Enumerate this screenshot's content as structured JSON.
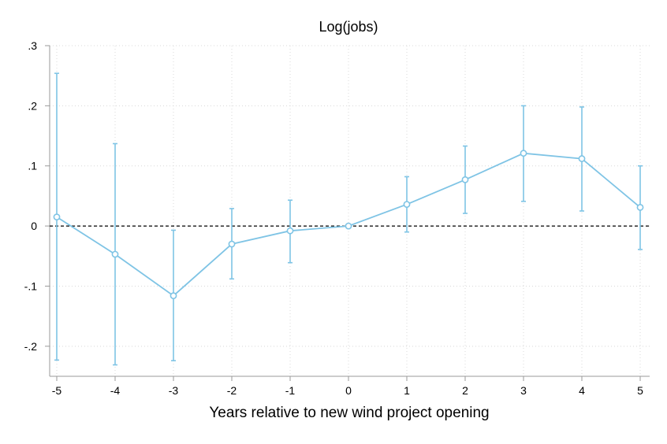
{
  "chart_data": {
    "type": "line",
    "title": "Log(jobs)",
    "xlabel": "Years relative to new wind project opening",
    "ylabel": "",
    "x": [
      -5,
      -4,
      -3,
      -2,
      -1,
      0,
      1,
      2,
      3,
      4,
      5
    ],
    "xlim": [
      -5,
      5
    ],
    "ylim": [
      -0.25,
      0.3
    ],
    "xticks": [
      -5,
      -4,
      -3,
      -2,
      -1,
      0,
      1,
      2,
      3,
      4,
      5
    ],
    "xtick_labels": [
      "-5",
      "-4",
      "-3",
      "-2",
      "-1",
      "0",
      "1",
      "2",
      "3",
      "4",
      "5"
    ],
    "yticks": [
      -0.2,
      -0.1,
      0,
      0.1,
      0.2,
      0.3
    ],
    "ytick_labels": [
      "-.2",
      "-.1",
      "0",
      ".1",
      ".2",
      ".3"
    ],
    "grid": true,
    "series": [
      {
        "values": [
          0.015,
          -0.047,
          -0.116,
          -0.03,
          -0.008,
          0.0,
          0.036,
          0.077,
          0.121,
          0.112,
          0.031
        ],
        "ci_low": [
          -0.223,
          -0.231,
          -0.224,
          -0.088,
          -0.061,
          0.0,
          -0.01,
          0.021,
          0.041,
          0.025,
          -0.039
        ],
        "ci_high": [
          0.254,
          0.137,
          -0.007,
          0.029,
          0.043,
          0.0,
          0.082,
          0.133,
          0.2,
          0.198,
          0.1
        ],
        "color": "#7fc4e5"
      }
    ],
    "reference_line": {
      "y": 0,
      "style": "dashed",
      "color": "#000000"
    }
  }
}
